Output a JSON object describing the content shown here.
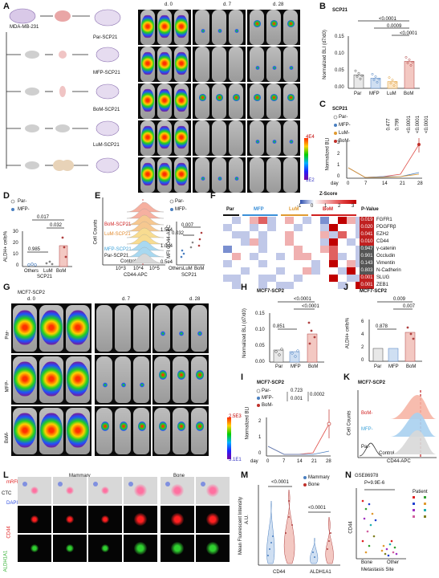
{
  "panels": {
    "A": {
      "label": "A",
      "cell_line": "MDA-MB-231",
      "par": "Par-SCP21",
      "mfp": "MFP-SCP21",
      "bom": "BoM-SCP21",
      "lum": "LuM-SCP21",
      "d0": "d. 0",
      "d7": "d. 7",
      "d28": "d. 28",
      "cb_max": "4E4",
      "cb_min": "1E2"
    },
    "B": {
      "label": "B",
      "title": "SCP21",
      "ylabel": "Normalized BLI (d7/d0)",
      "p1": "<0.0001",
      "p2": "0.0009",
      "p3": "<0.0001",
      "cats": [
        "Par",
        "MFP",
        "LuM",
        "BoM"
      ],
      "values": [
        0.04,
        0.03,
        0.02,
        0.08
      ],
      "yticks": [
        "0.00",
        "0.05",
        "0.10",
        "0.15"
      ]
    },
    "C": {
      "label": "C",
      "title": "SCP21",
      "ylabel": "Normalized BLI",
      "legend": [
        "Par-",
        "MFP-",
        "LuM-",
        "BoM-"
      ],
      "p": [
        "0.477",
        "0.799",
        "<0.0001",
        "<0.0001",
        "<0.0001"
      ],
      "x": [
        0,
        7,
        14,
        21,
        28
      ],
      "xlabel": "day",
      "yticks": [
        "0",
        "1",
        "2",
        "3"
      ]
    },
    "D": {
      "label": "D",
      "legend": [
        "Par-",
        "MFP-"
      ],
      "ylabel": "ALDH+ cells%",
      "p1": "0.017",
      "p2": "0.032",
      "p3": "0.985",
      "cats": [
        "Others",
        "LuM",
        "BoM"
      ],
      "group": "SCP21",
      "yticks": [
        "0",
        "10",
        "20",
        "30"
      ]
    },
    "E": {
      "label": "E",
      "ylabel": "Cell Counts",
      "xlabel": "CD44-APC",
      "rows": [
        "BoM-SCP21",
        "LuM-SCP21",
        "MFP-SCP21",
        "Par-SCP21",
        "Control"
      ],
      "xticks": [
        "10^3",
        "10^4",
        "10^5"
      ],
      "legend": [
        "Par-",
        "MFP-"
      ],
      "ylabel2": "MFI CD44-APC",
      "p1": "0.007",
      "p2": "0.032",
      "cats": [
        "Others",
        "LuM",
        "BoM"
      ],
      "group": "SCP21",
      "yticks2": [
        "0.5e4",
        "1.0e4",
        "1.5e4"
      ]
    },
    "F": {
      "label": "F",
      "title": "Z-Score",
      "scale": [
        "-1",
        "0",
        "1",
        "2",
        "3"
      ],
      "groups": [
        "Par",
        "MFP",
        "LuM",
        "BoM"
      ],
      "pcol": "P-Value",
      "genes": [
        {
          "p": "0.019",
          "g": "FGFR1"
        },
        {
          "p": "0.020",
          "g": "PDGFRβ"
        },
        {
          "p": "0.041",
          "g": "EZH2"
        },
        {
          "p": "0.010",
          "g": "CD44"
        },
        {
          "p": "0.947",
          "g": "γ-catenin"
        },
        {
          "p": "0.901",
          "g": "Occludin"
        },
        {
          "p": "0.143",
          "g": "Vimentin"
        },
        {
          "p": "0.803",
          "g": "N-Cadherin"
        },
        {
          "p": "0.001",
          "g": "SLUG"
        },
        {
          "p": "0.001",
          "g": "ZEB1"
        }
      ]
    },
    "G": {
      "label": "G",
      "cell_line": "MCF7-SCP2",
      "rows": [
        "Par-",
        "MFP-",
        "BoM-"
      ],
      "d0": "d. 0",
      "d7": "d. 7",
      "d28": "d. 28",
      "cb_max": "2.5E3",
      "cb_min": "3.1E1"
    },
    "H": {
      "label": "H",
      "title": "MCF7-SCP2",
      "ylabel": "Normalized BLI (d7/d0)",
      "p1": "<0.0001",
      "p2": "<0.0001",
      "p3": "0.851",
      "cats": [
        "Par",
        "MFP",
        "BoM"
      ],
      "yticks": [
        "0.00",
        "0.05",
        "0.10",
        "0.15"
      ]
    },
    "I": {
      "label": "I",
      "title": "MCF7-SCP2",
      "ylabel": "Normalized BLI",
      "legend": [
        "Par-",
        "MFP-",
        "BoM-"
      ],
      "p": [
        "0.723",
        "0.001",
        "0.0002"
      ],
      "x": [
        0,
        7,
        14,
        21,
        28
      ],
      "xlabel": "day",
      "yticks": [
        "0",
        "1",
        "2"
      ]
    },
    "J": {
      "label": "J",
      "title": "MCF7-SCP2",
      "ylabel": "ALDH+ cells%",
      "p1": "0.009",
      "p2": "0.007",
      "p3": "0.878",
      "cats": [
        "Par",
        "MFP",
        "BoM"
      ],
      "yticks": [
        "0",
        "2",
        "4",
        "6"
      ]
    },
    "K": {
      "label": "K",
      "title": "MCF7-SCP2",
      "ylabel": "Cell Counts",
      "xlabel": "CD44-APC",
      "rows": [
        "BoM-",
        "MFP-",
        "Par-",
        "Control"
      ]
    },
    "L": {
      "label": "L",
      "mammary": "Mammary",
      "bone": "Bone",
      "rows": [
        "mRFP",
        "DAPI",
        "CD44",
        "ALDH1A1"
      ],
      "ctc": "CTC"
    },
    "M": {
      "label": "M",
      "ylabel": "Mean Fluorescent Intensity",
      "unit": "A.U.",
      "legend": [
        "Mammary",
        "Bone"
      ],
      "p1": "<0.0001",
      "p2": "<0.0001",
      "cats": [
        "CD44",
        "ALDH1A1"
      ]
    },
    "N": {
      "label": "N",
      "dataset": "GSE86978",
      "p": "P=9.9E-6",
      "ylabel": "CD44",
      "xlabel": "Metastasis Site",
      "cats": [
        "Bone",
        "Other"
      ],
      "legend_title": "Patient"
    }
  }
}
